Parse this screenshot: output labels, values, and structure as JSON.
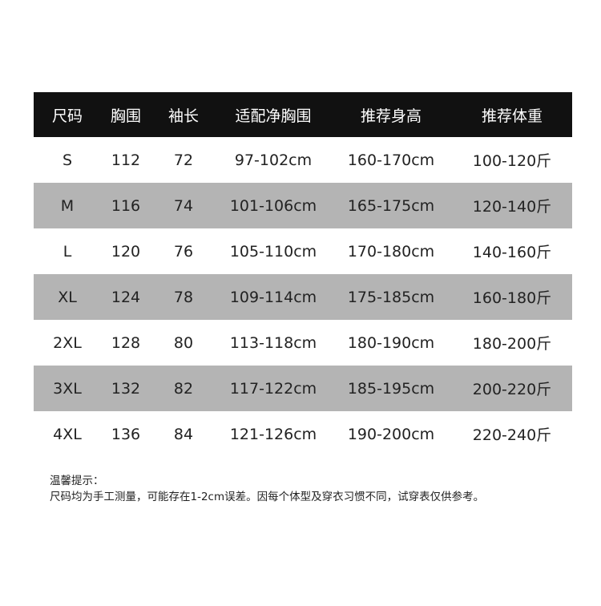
{
  "table": {
    "headers": [
      "尺码",
      "胸围",
      "袖长",
      "适配净胸围",
      "推荐身高",
      "推荐体重"
    ],
    "rows": [
      [
        "S",
        "112",
        "72",
        "97-102cm",
        "160-170cm",
        "100-120斤"
      ],
      [
        "M",
        "116",
        "74",
        "101-106cm",
        "165-175cm",
        "120-140斤"
      ],
      [
        "L",
        "120",
        "76",
        "105-110cm",
        "170-180cm",
        "140-160斤"
      ],
      [
        "XL",
        "124",
        "78",
        "109-114cm",
        "175-185cm",
        "160-180斤"
      ],
      [
        "2XL",
        "128",
        "80",
        "113-118cm",
        "180-190cm",
        "180-200斤"
      ],
      [
        "3XL",
        "132",
        "82",
        "117-122cm",
        "185-195cm",
        "200-220斤"
      ],
      [
        "4XL",
        "136",
        "84",
        "121-126cm",
        "190-200cm",
        "220-240斤"
      ]
    ]
  },
  "notes": {
    "title": "温馨提示：",
    "text": "尺码均为手工测量，可能存在1-2cm误差。因每个体型及穿衣习惯不同，试穿表仅供参考。"
  },
  "colors": {
    "header_bg": "#111111",
    "stripe": "#b4b4b4"
  }
}
